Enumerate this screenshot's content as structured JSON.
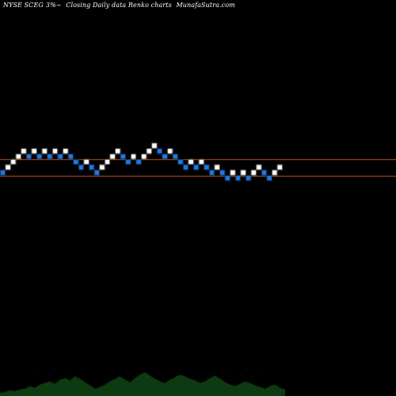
{
  "title": {
    "exchange_symbol": "NYSE SCEG",
    "pct": "3%",
    "pct_suffix": "~",
    "description": "Closing Daily data  Renko  charts",
    "site": "MunafaSutra.com"
  },
  "colors": {
    "background": "#000000",
    "up_brick": "#ffffff",
    "down_brick": "#1e7ae6",
    "brick_border": "#000000",
    "level_line": "#c0521c",
    "volume": "#0e3a12",
    "volume_label": "#bbbbbb"
  },
  "chart_data": {
    "type": "renko",
    "title": "NYSE SCEG 3%~ Closing Daily data Renko charts MunafaSutra.com",
    "brick_size_pct": 3,
    "bricks": [
      {
        "dir": "down",
        "level": 0
      },
      {
        "dir": "up",
        "level": 1
      },
      {
        "dir": "up",
        "level": 2
      },
      {
        "dir": "up",
        "level": 3
      },
      {
        "dir": "up",
        "level": 4
      },
      {
        "dir": "down",
        "level": 3
      },
      {
        "dir": "up",
        "level": 4
      },
      {
        "dir": "down",
        "level": 3
      },
      {
        "dir": "up",
        "level": 4
      },
      {
        "dir": "down",
        "level": 3
      },
      {
        "dir": "up",
        "level": 4
      },
      {
        "dir": "down",
        "level": 3
      },
      {
        "dir": "up",
        "level": 4
      },
      {
        "dir": "down",
        "level": 3
      },
      {
        "dir": "down",
        "level": 2
      },
      {
        "dir": "down",
        "level": 1
      },
      {
        "dir": "up",
        "level": 2
      },
      {
        "dir": "down",
        "level": 1
      },
      {
        "dir": "down",
        "level": 0
      },
      {
        "dir": "up",
        "level": 1
      },
      {
        "dir": "up",
        "level": 2
      },
      {
        "dir": "up",
        "level": 3
      },
      {
        "dir": "up",
        "level": 4
      },
      {
        "dir": "down",
        "level": 3
      },
      {
        "dir": "down",
        "level": 2
      },
      {
        "dir": "up",
        "level": 3
      },
      {
        "dir": "down",
        "level": 2
      },
      {
        "dir": "up",
        "level": 3
      },
      {
        "dir": "up",
        "level": 4
      },
      {
        "dir": "up",
        "level": 5
      },
      {
        "dir": "down",
        "level": 4
      },
      {
        "dir": "down",
        "level": 3
      },
      {
        "dir": "up",
        "level": 4
      },
      {
        "dir": "down",
        "level": 3
      },
      {
        "dir": "down",
        "level": 2
      },
      {
        "dir": "down",
        "level": 1
      },
      {
        "dir": "up",
        "level": 2
      },
      {
        "dir": "down",
        "level": 1
      },
      {
        "dir": "up",
        "level": 2
      },
      {
        "dir": "down",
        "level": 1
      },
      {
        "dir": "down",
        "level": 0
      },
      {
        "dir": "up",
        "level": 1
      },
      {
        "dir": "down",
        "level": 0
      },
      {
        "dir": "down",
        "level": -1
      },
      {
        "dir": "up",
        "level": 0
      },
      {
        "dir": "down",
        "level": -1
      },
      {
        "dir": "up",
        "level": 0
      },
      {
        "dir": "down",
        "level": -1
      },
      {
        "dir": "up",
        "level": 0
      },
      {
        "dir": "up",
        "level": 1
      },
      {
        "dir": "down",
        "level": 0
      },
      {
        "dir": "down",
        "level": -1
      },
      {
        "dir": "up",
        "level": 0
      },
      {
        "dir": "up",
        "level": 1
      }
    ],
    "level_lines": [
      2,
      0
    ],
    "volume": [
      4,
      5,
      7,
      6,
      8,
      9,
      12,
      10,
      14,
      16,
      18,
      15,
      20,
      22,
      19,
      24,
      21,
      17,
      13,
      9,
      11,
      14,
      18,
      21,
      24,
      20,
      17,
      22,
      26,
      29,
      25,
      21,
      18,
      16,
      20,
      23,
      26,
      24,
      21,
      19,
      16,
      18,
      22,
      25,
      21,
      17,
      14,
      12,
      15,
      18,
      16,
      13,
      11,
      9,
      12,
      14,
      10,
      8
    ]
  }
}
